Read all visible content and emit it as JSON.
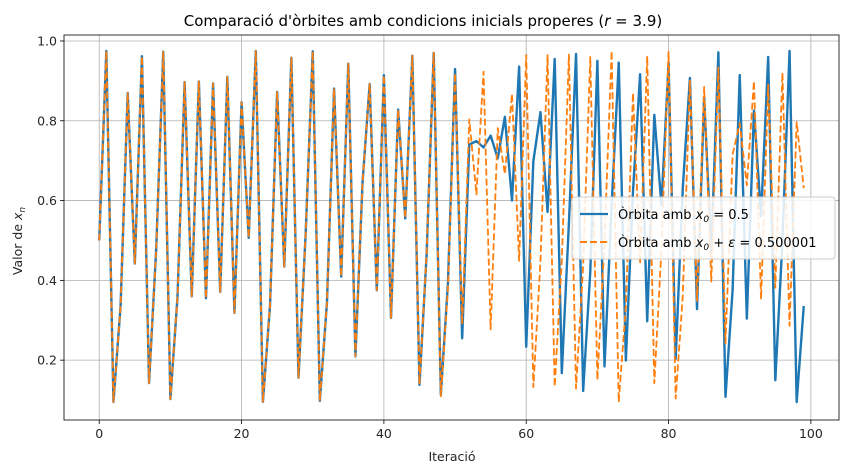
{
  "chart_data": {
    "type": "line",
    "title": "Comparació d'òrbites amb condicions inicials properes (r = 3.9)",
    "title_parts": {
      "main": "Comparació d'òrbites amb condicions inicials properes (",
      "var": "r",
      "rest": " = 3.9)"
    },
    "xlabel": "Iteració",
    "ylabel": "Valor de x_n",
    "ylabel_parts": {
      "main": "Valor de ",
      "var": "x",
      "sub": "n"
    },
    "xlim": [
      -4.95,
      103.95
    ],
    "ylim": [
      0.05,
      1.015
    ],
    "xticks": [
      0,
      20,
      40,
      60,
      80,
      100
    ],
    "yticks": [
      0.2,
      0.4,
      0.6,
      0.8,
      1.0
    ],
    "xtick_labels": [
      "0",
      "20",
      "40",
      "60",
      "80",
      "100"
    ],
    "ytick_labels": [
      "0.2",
      "0.4",
      "0.6",
      "0.8",
      "1.0"
    ],
    "grid": true,
    "legend_position": "center-right",
    "legend": [
      {
        "label": "Òrbita amb x_0 = 0.5",
        "parts": {
          "pre": "Òrbita amb ",
          "var": "x",
          "sub": "0",
          "post": " = 0.5"
        }
      },
      {
        "label": "Òrbita amb x_0 + ε = 0.500001",
        "parts": {
          "pre": "Òrbita amb ",
          "var": "x",
          "sub": "0",
          "post2": " + ",
          "eps": "ε",
          "post": " = 0.500001"
        }
      }
    ],
    "series": [
      {
        "name": "Òrbita amb x_0 = 0.5",
        "color": "#1f77b4",
        "dash": "solid",
        "x": [
          0,
          1,
          2,
          3,
          4,
          5,
          6,
          7,
          8,
          9,
          10,
          11,
          12,
          13,
          14,
          15,
          16,
          17,
          18,
          19,
          20,
          21,
          22,
          23,
          24,
          25,
          26,
          27,
          28,
          29,
          30,
          31,
          32,
          33,
          34,
          35,
          36,
          37,
          38,
          39,
          40,
          41,
          42,
          43,
          44,
          45,
          46,
          47,
          48,
          49,
          50,
          51,
          52,
          53,
          54,
          55,
          56,
          57,
          58,
          59,
          60,
          61,
          62,
          63,
          64,
          65,
          66,
          67,
          68,
          69,
          70,
          71,
          72,
          73,
          74,
          75,
          76,
          77,
          78,
          79,
          80,
          81,
          82,
          83,
          84,
          85,
          86,
          87,
          88,
          89,
          90,
          91,
          92,
          93,
          94,
          95,
          96,
          97,
          98,
          99
        ],
        "values": [
          0.5,
          0.975,
          0.0951,
          0.3356,
          0.8696,
          0.4422,
          0.962,
          0.1426,
          0.4769,
          0.973,
          0.1025,
          0.3587,
          0.8971,
          0.36,
          0.8986,
          0.3554,
          0.8934,
          0.3713,
          0.9103,
          0.3185,
          0.8465,
          0.5067,
          0.9748,
          0.0957,
          0.3377,
          0.8723,
          0.4345,
          0.9582,
          0.1562,
          0.514,
          0.9742,
          0.0979,
          0.3446,
          0.8808,
          0.4095,
          0.9431,
          0.2094,
          0.6457,
          0.8922,
          0.3752,
          0.9142,
          0.3059,
          0.8281,
          0.5551,
          0.9632,
          0.1382,
          0.4645,
          0.97,
          0.1135,
          0.3925,
          0.9297,
          0.2549,
          0.7407,
          0.749,
          0.7332,
          0.7628,
          0.7057,
          0.8101,
          0.6,
          0.936,
          0.2336,
          0.6983,
          0.8217,
          0.5714,
          0.955,
          0.1676,
          0.5441,
          0.9674,
          0.1229,
          0.4204,
          0.9503,
          0.1843,
          0.5863,
          0.946,
          0.1992,
          0.6222,
          0.9168,
          0.2976,
          0.815,
          0.588,
          0.9448,
          0.2033,
          0.6317,
          0.9073,
          0.3281,
          0.8598,
          0.4702,
          0.9715,
          0.108,
          0.3757,
          0.9147,
          0.3042,
          0.8255,
          0.5619,
          0.96,
          0.1498,
          0.4967,
          0.975,
          0.0951,
          0.3357
        ]
      },
      {
        "name": "Òrbita amb x_0 + ε = 0.500001",
        "color": "#ff7f0e",
        "dash": "dashed",
        "x": [
          0,
          1,
          2,
          3,
          4,
          5,
          6,
          7,
          8,
          9,
          10,
          11,
          12,
          13,
          14,
          15,
          16,
          17,
          18,
          19,
          20,
          21,
          22,
          23,
          24,
          25,
          26,
          27,
          28,
          29,
          30,
          31,
          32,
          33,
          34,
          35,
          36,
          37,
          38,
          39,
          40,
          41,
          42,
          43,
          44,
          45,
          46,
          47,
          48,
          49,
          50,
          51,
          52,
          53,
          54,
          55,
          56,
          57,
          58,
          59,
          60,
          61,
          62,
          63,
          64,
          65,
          66,
          67,
          68,
          69,
          70,
          71,
          72,
          73,
          74,
          75,
          76,
          77,
          78,
          79,
          80,
          81,
          82,
          83,
          84,
          85,
          86,
          87,
          88,
          89,
          90,
          91,
          92,
          93,
          94,
          95,
          96,
          97,
          98,
          99
        ],
        "values": [
          0.5,
          0.975,
          0.0951,
          0.3356,
          0.8696,
          0.4422,
          0.962,
          0.1426,
          0.4769,
          0.973,
          0.1025,
          0.3587,
          0.8971,
          0.36,
          0.8986,
          0.3554,
          0.8934,
          0.3713,
          0.9103,
          0.3185,
          0.8465,
          0.5067,
          0.9748,
          0.0957,
          0.3377,
          0.8723,
          0.4345,
          0.9582,
          0.1562,
          0.514,
          0.9742,
          0.0979,
          0.3446,
          0.8808,
          0.4095,
          0.9431,
          0.2094,
          0.6457,
          0.8922,
          0.3752,
          0.9142,
          0.3059,
          0.8281,
          0.5556,
          0.9629,
          0.1394,
          0.468,
          0.9711,
          0.1095,
          0.3803,
          0.919,
          0.2903,
          0.8036,
          0.6155,
          0.923,
          0.2772,
          0.7814,
          0.6662,
          0.8673,
          0.4488,
          0.9648,
          0.1324,
          0.448,
          0.9645,
          0.1336,
          0.4514,
          0.9658,
          0.1288,
          0.4376,
          0.9598,
          0.1505,
          0.4986,
          0.975,
          0.0951,
          0.3355,
          0.8695,
          0.4426,
          0.9621,
          0.1422,
          0.4757,
          0.9727,
          0.1036,
          0.3622,
          0.9009,
          0.3482,
          0.885,
          0.3969,
          0.9335,
          0.2421,
          0.7156,
          0.7937,
          0.6386,
          0.8995,
          0.3525,
          0.8901,
          0.3815,
          0.9202,
          0.2864,
          0.797,
          0.6311
        ]
      }
    ]
  }
}
